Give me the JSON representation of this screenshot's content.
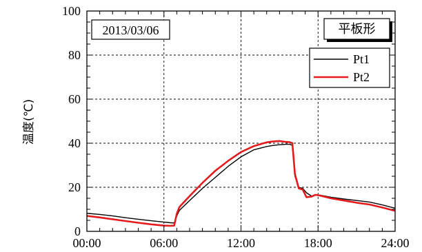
{
  "chart_data": {
    "type": "line",
    "title": "",
    "xlabel": "",
    "ylabel": "温度(℃)",
    "xlim": [
      0,
      24
    ],
    "ylim": [
      0,
      100
    ],
    "x_ticks": [
      0,
      6,
      12,
      18,
      24
    ],
    "x_tick_labels": [
      "00:00",
      "06:00",
      "12:00",
      "18:00",
      "24:00"
    ],
    "y_ticks": [
      0,
      20,
      40,
      60,
      80,
      100
    ],
    "y_tick_labels": [
      "0",
      "20",
      "40",
      "60",
      "80",
      "100"
    ],
    "grid": true,
    "legend_position": "top-right",
    "annotations": {
      "date": "2013/03/06",
      "shape": "平板形"
    },
    "series": [
      {
        "name": "Pt1",
        "color": "#000000",
        "x": [
          0,
          1,
          2,
          3,
          4,
          5,
          6,
          6.5,
          6.8,
          7.0,
          7.2,
          8,
          9,
          10,
          11,
          12,
          13,
          14,
          14.5,
          15,
          15.5,
          15.8,
          16.0,
          16.2,
          16.5,
          16.8,
          17.1,
          17.5,
          17.8,
          18.2,
          19,
          20,
          21,
          22,
          23,
          24
        ],
        "y": [
          8.2,
          7.7,
          7.0,
          6.2,
          5.5,
          4.8,
          4.2,
          3.9,
          3.8,
          7.0,
          9.5,
          14,
          19.5,
          24.5,
          29.5,
          33.8,
          37,
          38.5,
          39.0,
          39.3,
          39.5,
          39.5,
          39.0,
          25,
          20,
          19.5,
          17.5,
          16.0,
          16.4,
          16.4,
          15.5,
          14.7,
          14.0,
          13.3,
          12.0,
          10.5
        ]
      },
      {
        "name": "Pt2",
        "color": "#e41a1c",
        "x": [
          0,
          1,
          2,
          3,
          4,
          5,
          6,
          6.5,
          6.8,
          7.0,
          7.2,
          8,
          9,
          10,
          11,
          12,
          13,
          14,
          14.5,
          15,
          15.5,
          15.8,
          16.0,
          16.2,
          16.5,
          16.8,
          17.1,
          17.5,
          17.8,
          18.2,
          19,
          20,
          21,
          22,
          23,
          24
        ],
        "y": [
          7.0,
          6.3,
          5.5,
          4.7,
          3.9,
          3.2,
          2.6,
          2.5,
          2.6,
          8.0,
          11.0,
          16,
          22,
          27.5,
          32,
          36,
          38.7,
          40.4,
          40.8,
          41.0,
          40.6,
          40.5,
          40.0,
          26,
          19.5,
          19.0,
          15.5,
          15.8,
          16.6,
          16.2,
          15.0,
          14.0,
          13.0,
          12.2,
          10.8,
          9.3
        ]
      }
    ]
  }
}
